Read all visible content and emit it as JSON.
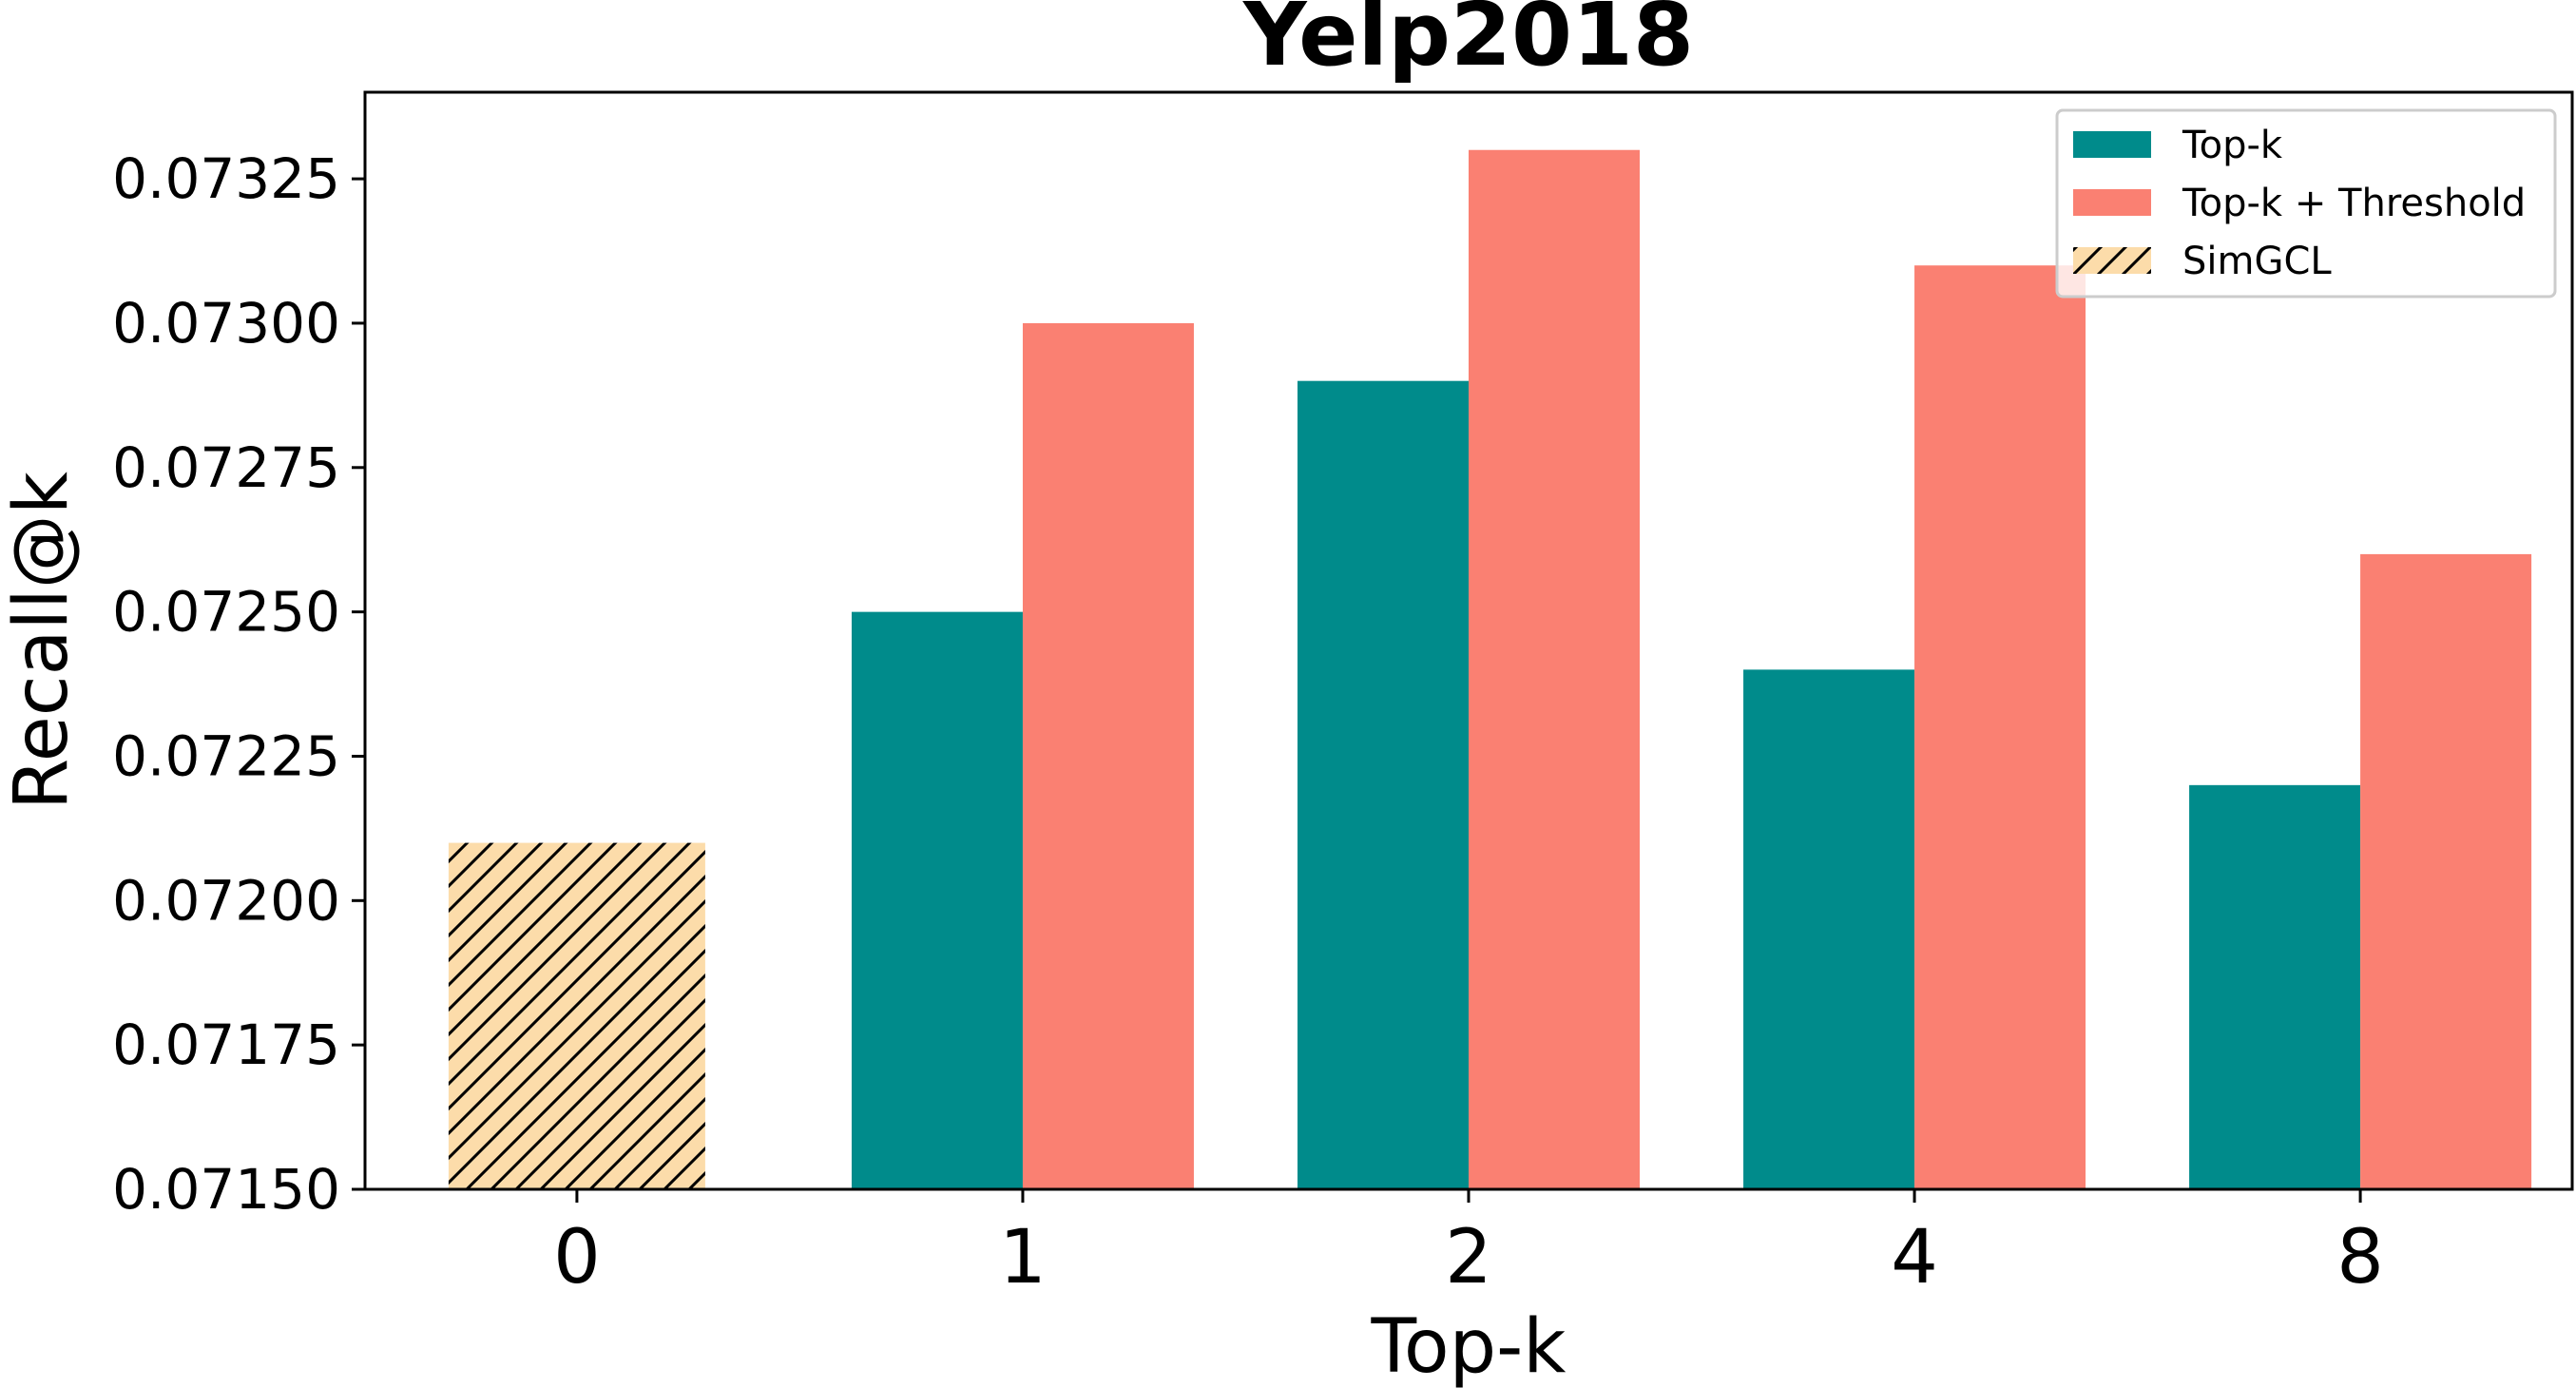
{
  "chart_data": {
    "type": "bar",
    "title": "Yelp2018",
    "xlabel": "Top-k",
    "ylabel": "Recall@k",
    "categories": [
      "0",
      "1",
      "2",
      "4",
      "8"
    ],
    "ylim": [
      0.0715,
      0.0734
    ],
    "yticks": [
      "0.07150",
      "0.07175",
      "0.07200",
      "0.07225",
      "0.07250",
      "0.07275",
      "0.07300",
      "0.07325"
    ],
    "ytick_values": [
      0.0715,
      0.07175,
      0.072,
      0.07225,
      0.0725,
      0.07275,
      0.073,
      0.07325
    ],
    "grid": false,
    "legend_position": "top-right",
    "series": [
      {
        "name": "Top-k",
        "color": "#008b8b",
        "values": [
          null,
          0.0725,
          0.0729,
          0.0724,
          0.0722
        ]
      },
      {
        "name": "Top-k + Threshold",
        "color": "#fa8072",
        "values": [
          null,
          0.073,
          0.0733,
          0.0731,
          0.0726
        ]
      },
      {
        "name": "SimGCL",
        "color": "#fcdcaa",
        "pattern": "hatch",
        "values": [
          0.0721,
          null,
          null,
          null,
          null
        ]
      }
    ]
  }
}
